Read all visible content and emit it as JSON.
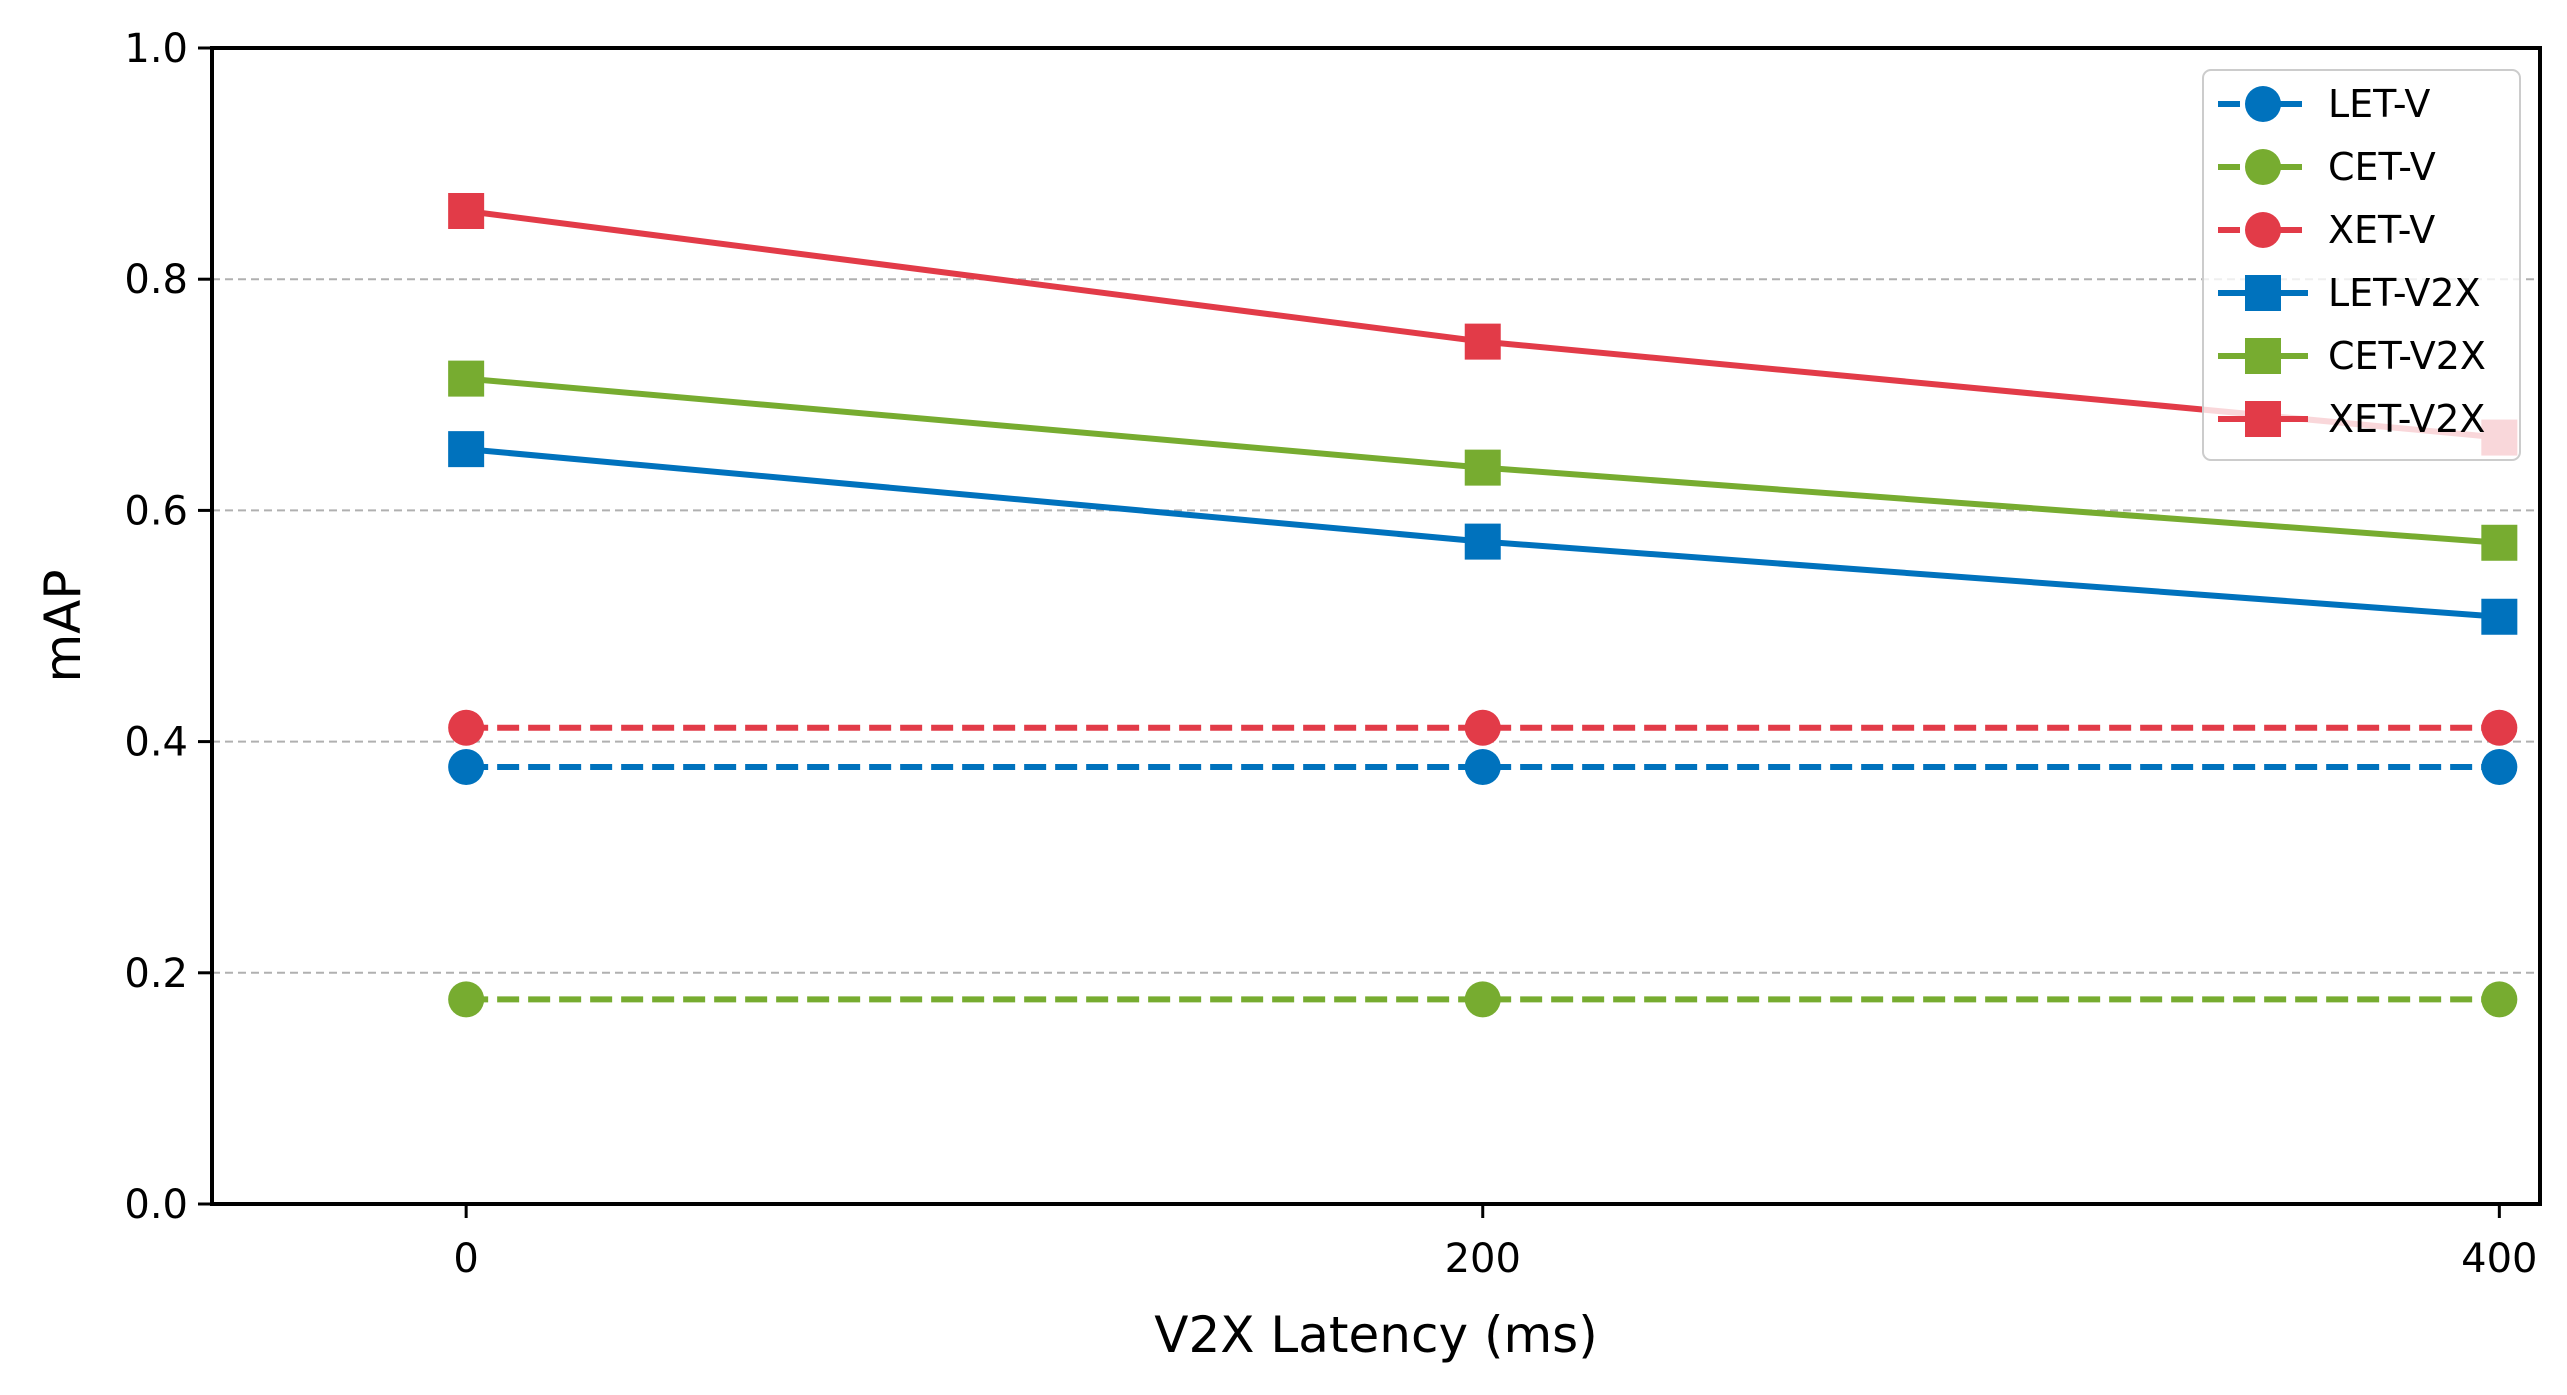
{
  "chart_data": {
    "type": "line",
    "title": "",
    "xlabel": "V2X Latency (ms)",
    "ylabel": "mAP",
    "xlim": [
      -50,
      408
    ],
    "ylim": [
      0.0,
      1.0
    ],
    "x_ticks": [
      0,
      200,
      400
    ],
    "y_ticks": [
      0.0,
      0.2,
      0.4,
      0.6,
      0.8,
      1.0
    ],
    "x_tick_labels": [
      "0",
      "200",
      "400"
    ],
    "y_tick_labels": [
      "0.0",
      "0.2",
      "0.4",
      "0.6",
      "0.8",
      "1.0"
    ],
    "grid": "y-dashed",
    "legend_position": "top-right",
    "x": [
      0,
      200,
      400
    ],
    "series": [
      {
        "name": "LET-V",
        "color": "#0072BD",
        "linestyle": "dashed",
        "marker": "circle",
        "values": [
          0.378,
          0.378,
          0.378
        ]
      },
      {
        "name": "CET-V",
        "color": "#77AC30",
        "linestyle": "dashed",
        "marker": "circle",
        "values": [
          0.177,
          0.177,
          0.177
        ]
      },
      {
        "name": "XET-V",
        "color": "#E23B48",
        "linestyle": "dashed",
        "marker": "circle",
        "values": [
          0.412,
          0.412,
          0.412
        ]
      },
      {
        "name": "LET-V2X",
        "color": "#0072BD",
        "linestyle": "solid",
        "marker": "square",
        "values": [
          0.653,
          0.573,
          0.508
        ]
      },
      {
        "name": "CET-V2X",
        "color": "#77AC30",
        "linestyle": "solid",
        "marker": "square",
        "values": [
          0.714,
          0.637,
          0.572
        ]
      },
      {
        "name": "XET-V2X",
        "color": "#E23B48",
        "linestyle": "solid",
        "marker": "square",
        "values": [
          0.859,
          0.746,
          0.663
        ]
      }
    ]
  }
}
